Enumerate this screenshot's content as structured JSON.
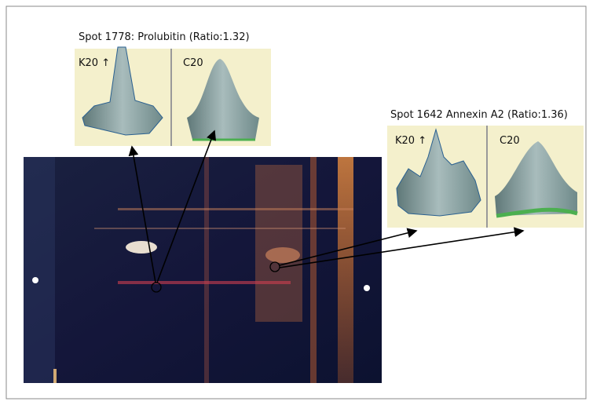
{
  "figure": {
    "spots": [
      {
        "title": "Spot 1778: Prolubitin (Ratio:1.32)",
        "panels": [
          "K20 ↑",
          "C20"
        ]
      },
      {
        "title": "Spot 1642 Annexin A2 (Ratio:1.36)",
        "panels": [
          "K20 ↑",
          "C20"
        ]
      }
    ]
  }
}
